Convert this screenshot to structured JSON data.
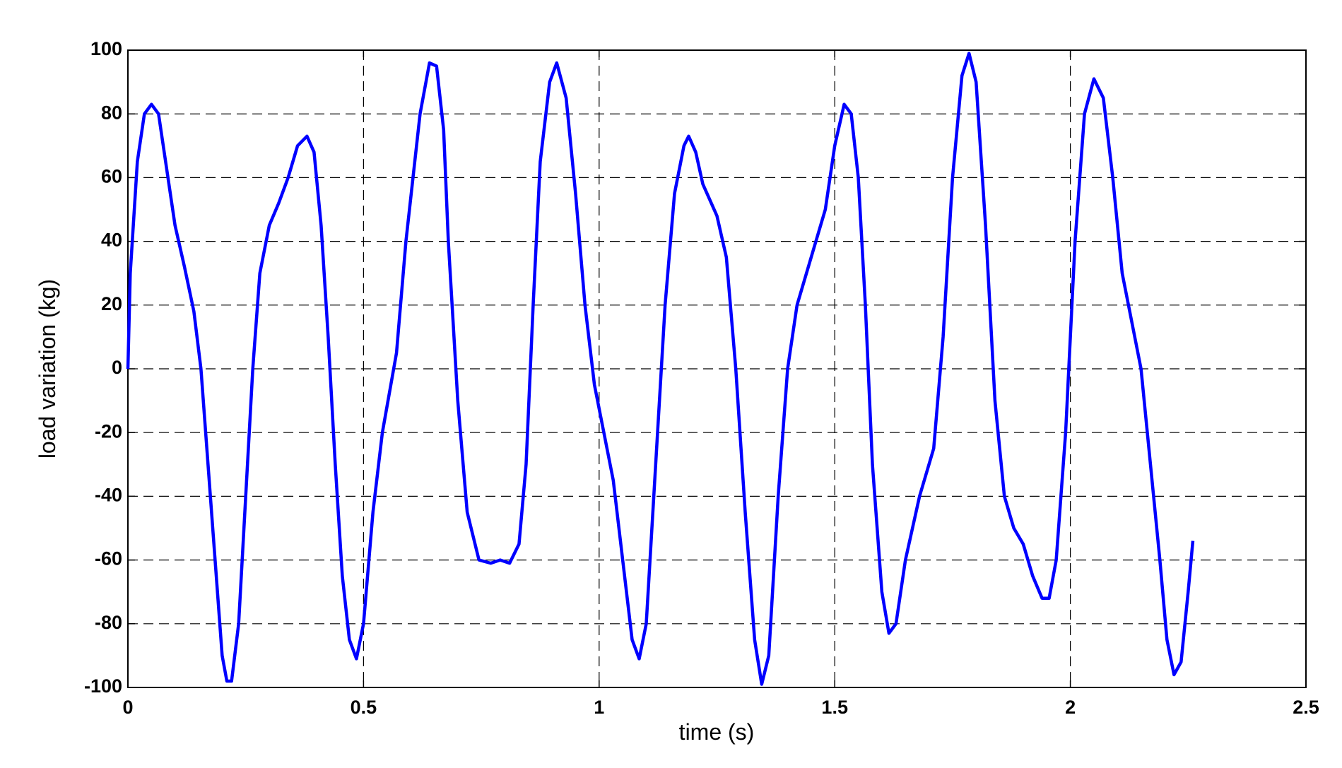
{
  "chart_data": {
    "type": "line",
    "xlabel": "time (s)",
    "ylabel": "load variation (kg)",
    "xlim": [
      0,
      2.5
    ],
    "ylim": [
      -100,
      100
    ],
    "xticks": [
      0,
      0.5,
      1,
      1.5,
      2,
      2.5
    ],
    "yticks": [
      -100,
      -80,
      -60,
      -40,
      -20,
      0,
      20,
      40,
      60,
      80,
      100
    ],
    "grid": true,
    "x": [
      0,
      0.005,
      0.02,
      0.035,
      0.05,
      0.065,
      0.08,
      0.1,
      0.12,
      0.14,
      0.155,
      0.17,
      0.185,
      0.2,
      0.21,
      0.22,
      0.235,
      0.25,
      0.265,
      0.28,
      0.3,
      0.32,
      0.34,
      0.36,
      0.38,
      0.395,
      0.41,
      0.425,
      0.44,
      0.455,
      0.47,
      0.485,
      0.5,
      0.52,
      0.54,
      0.57,
      0.59,
      0.62,
      0.64,
      0.655,
      0.67,
      0.68,
      0.7,
      0.72,
      0.745,
      0.77,
      0.79,
      0.81,
      0.83,
      0.845,
      0.86,
      0.875,
      0.895,
      0.91,
      0.93,
      0.95,
      0.97,
      0.99,
      1.01,
      1.03,
      1.05,
      1.07,
      1.085,
      1.1,
      1.12,
      1.14,
      1.16,
      1.18,
      1.19,
      1.205,
      1.22,
      1.25,
      1.27,
      1.29,
      1.31,
      1.33,
      1.345,
      1.36,
      1.38,
      1.4,
      1.42,
      1.45,
      1.48,
      1.5,
      1.52,
      1.535,
      1.55,
      1.565,
      1.58,
      1.6,
      1.615,
      1.63,
      1.65,
      1.68,
      1.71,
      1.73,
      1.75,
      1.77,
      1.785,
      1.8,
      1.82,
      1.84,
      1.86,
      1.88,
      1.9,
      1.92,
      1.94,
      1.955,
      1.97,
      1.99,
      2.01,
      2.03,
      2.05,
      2.07,
      2.09,
      2.11,
      2.13,
      2.15,
      2.17,
      2.19,
      2.205,
      2.22,
      2.235,
      2.25,
      2.26
    ],
    "series": [
      {
        "color": "#0000ff",
        "values": [
          0,
          30,
          65,
          80,
          83,
          80,
          65,
          45,
          32,
          18,
          0,
          -30,
          -60,
          -90,
          -98,
          -98,
          -80,
          -40,
          0,
          30,
          45,
          52,
          60,
          70,
          73,
          68,
          45,
          10,
          -30,
          -65,
          -85,
          -91,
          -80,
          -45,
          -20,
          5,
          40,
          80,
          96,
          95,
          75,
          40,
          -10,
          -45,
          -60,
          -61,
          -60,
          -61,
          -55,
          -30,
          20,
          65,
          90,
          96,
          85,
          55,
          20,
          -5,
          -20,
          -35,
          -60,
          -85,
          -91,
          -80,
          -30,
          20,
          55,
          70,
          73,
          68,
          58,
          48,
          35,
          0,
          -45,
          -85,
          -99,
          -90,
          -40,
          0,
          20,
          35,
          50,
          70,
          83,
          80,
          60,
          20,
          -30,
          -70,
          -83,
          -80,
          -60,
          -40,
          -25,
          10,
          60,
          92,
          99,
          90,
          45,
          -10,
          -40,
          -50,
          -55,
          -65,
          -72,
          -72,
          -60,
          -20,
          40,
          80,
          91,
          85,
          60,
          30,
          15,
          0,
          -30,
          -60,
          -85,
          -96,
          -92,
          -70,
          -54
        ]
      }
    ]
  }
}
